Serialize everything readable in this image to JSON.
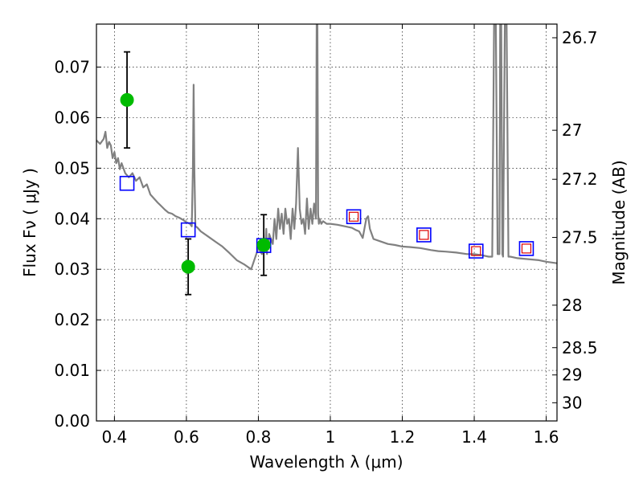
{
  "chart_data": {
    "type": "scatter",
    "title": "",
    "xlabel": "Wavelength  λ (μm)",
    "ylabel": "Flux  Fν  ( μJy )",
    "ylabel_right": "Magnitude (AB)",
    "xlim": [
      0.35,
      1.63
    ],
    "ylim": [
      0.0,
      0.0785
    ],
    "grid": true,
    "x_ticks": [
      0.4,
      0.6,
      0.8,
      1.0,
      1.2,
      1.4,
      1.6
    ],
    "x_tick_labels": [
      "0.4",
      "0.6",
      "0.8",
      "1",
      "1.2",
      "1.4",
      "1.6"
    ],
    "y_ticks": [
      0.0,
      0.01,
      0.02,
      0.03,
      0.04,
      0.05,
      0.06,
      0.07
    ],
    "y_tick_labels": [
      "0.00",
      "0.01",
      "0.02",
      "0.03",
      "0.04",
      "0.05",
      "0.06",
      "0.07"
    ],
    "right_ticks": [
      {
        "flux": 0.0758,
        "label": "26.7"
      },
      {
        "flux": 0.0575,
        "label": "27"
      },
      {
        "flux": 0.0478,
        "label": "27.2"
      },
      {
        "flux": 0.0363,
        "label": "27.5"
      },
      {
        "flux": 0.0229,
        "label": "28"
      },
      {
        "flux": 0.0145,
        "label": "28.5"
      },
      {
        "flux": 0.0091,
        "label": "29"
      },
      {
        "flux": 0.0036,
        "label": "30"
      }
    ],
    "spectrum": {
      "color": "#808080",
      "x": [
        0.35,
        0.36,
        0.37,
        0.375,
        0.38,
        0.385,
        0.39,
        0.395,
        0.4,
        0.405,
        0.41,
        0.415,
        0.42,
        0.43,
        0.44,
        0.45,
        0.46,
        0.47,
        0.48,
        0.49,
        0.5,
        0.51,
        0.52,
        0.53,
        0.54,
        0.55,
        0.56,
        0.57,
        0.58,
        0.59,
        0.6,
        0.61,
        0.615,
        0.618,
        0.62,
        0.622,
        0.625,
        0.63,
        0.64,
        0.66,
        0.68,
        0.7,
        0.72,
        0.74,
        0.76,
        0.78,
        0.8,
        0.81,
        0.815,
        0.82,
        0.822,
        0.824,
        0.826,
        0.828,
        0.83,
        0.835,
        0.84,
        0.845,
        0.85,
        0.855,
        0.86,
        0.865,
        0.87,
        0.875,
        0.88,
        0.885,
        0.89,
        0.895,
        0.9,
        0.905,
        0.91,
        0.915,
        0.92,
        0.925,
        0.93,
        0.935,
        0.94,
        0.945,
        0.95,
        0.955,
        0.96,
        0.962,
        0.964,
        0.966,
        0.968,
        0.97,
        0.975,
        0.98,
        0.99,
        1.0,
        1.02,
        1.04,
        1.06,
        1.07,
        1.08,
        1.09,
        1.1,
        1.105,
        1.11,
        1.12,
        1.14,
        1.16,
        1.18,
        1.2,
        1.22,
        1.25,
        1.28,
        1.3,
        1.32,
        1.35,
        1.38,
        1.4,
        1.42,
        1.44,
        1.45,
        1.455,
        1.46,
        1.465,
        1.47,
        1.472,
        1.475,
        1.478,
        1.48,
        1.485,
        1.49,
        1.495,
        1.5,
        1.52,
        1.55,
        1.58,
        1.6,
        1.63
      ],
      "y": [
        0.0555,
        0.0548,
        0.0558,
        0.0572,
        0.054,
        0.0552,
        0.0545,
        0.052,
        0.0532,
        0.051,
        0.052,
        0.0498,
        0.051,
        0.049,
        0.0482,
        0.049,
        0.0475,
        0.0482,
        0.0462,
        0.0468,
        0.0448,
        0.044,
        0.0432,
        0.0425,
        0.0418,
        0.0412,
        0.041,
        0.0405,
        0.0402,
        0.0398,
        0.0393,
        0.039,
        0.0385,
        0.05,
        0.0665,
        0.05,
        0.0385,
        0.0383,
        0.0375,
        0.0365,
        0.0355,
        0.0345,
        0.0332,
        0.0318,
        0.031,
        0.03,
        0.0342,
        0.033,
        0.036,
        0.035,
        0.038,
        0.033,
        0.036,
        0.034,
        0.037,
        0.036,
        0.035,
        0.04,
        0.036,
        0.042,
        0.038,
        0.041,
        0.037,
        0.042,
        0.039,
        0.04,
        0.036,
        0.042,
        0.038,
        0.043,
        0.054,
        0.042,
        0.039,
        0.04,
        0.037,
        0.044,
        0.038,
        0.042,
        0.039,
        0.043,
        0.04,
        0.0785,
        0.0785,
        0.041,
        0.039,
        0.04,
        0.039,
        0.0395,
        0.039,
        0.039,
        0.0388,
        0.0385,
        0.0382,
        0.0378,
        0.0375,
        0.0362,
        0.04,
        0.0405,
        0.038,
        0.036,
        0.0355,
        0.035,
        0.0348,
        0.0345,
        0.0344,
        0.0342,
        0.0338,
        0.0336,
        0.0335,
        0.0333,
        0.033,
        0.033,
        0.0328,
        0.0325,
        0.0325,
        0.0785,
        0.0785,
        0.033,
        0.033,
        0.0785,
        0.0785,
        0.033,
        0.0325,
        0.0785,
        0.0785,
        0.0325,
        0.0325,
        0.0322,
        0.032,
        0.0318,
        0.0315,
        0.0312
      ]
    },
    "observed_points": {
      "color": "#00bb00",
      "x": [
        0.435,
        0.605,
        0.815
      ],
      "y": [
        0.0635,
        0.0305,
        0.0348
      ],
      "yerr": [
        0.0095,
        0.0055,
        0.006
      ]
    },
    "model_squares_blue": {
      "color": "#0000ff",
      "x": [
        0.435,
        0.605,
        0.815,
        1.065,
        1.26,
        1.405,
        1.545
      ],
      "y": [
        0.047,
        0.0378,
        0.0347,
        0.0404,
        0.0368,
        0.0336,
        0.0341
      ]
    },
    "model_squares_red": {
      "color": "#dd0000",
      "x": [
        1.065,
        1.26,
        1.405,
        1.545
      ],
      "y": [
        0.0404,
        0.0368,
        0.0336,
        0.0341
      ]
    }
  }
}
